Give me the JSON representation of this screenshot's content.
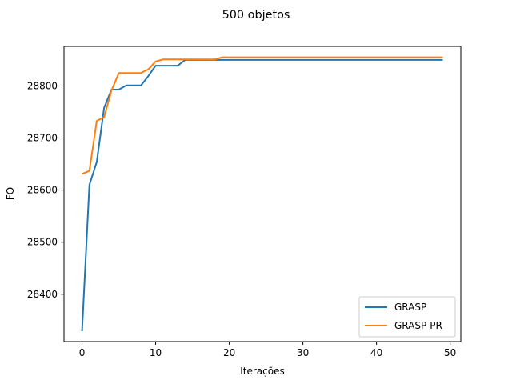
{
  "chart_data": {
    "type": "line",
    "title": "500 objetos",
    "xlabel": "Iterações",
    "ylabel": "FO",
    "xlim": [
      -2.45,
      51.45
    ],
    "ylim": [
      28309,
      28876
    ],
    "xticks": [
      0,
      10,
      20,
      30,
      40,
      50
    ],
    "yticks": [
      28400,
      28500,
      28600,
      28700,
      28800
    ],
    "grid": false,
    "legend_position": "lower right",
    "series": [
      {
        "name": "GRASP",
        "color": "#1f77b4",
        "x": [
          0,
          1,
          2,
          3,
          4,
          5,
          6,
          7,
          8,
          9,
          10,
          11,
          12,
          13,
          14,
          15,
          16,
          17,
          18,
          19,
          20,
          21,
          22,
          23,
          24,
          25,
          26,
          27,
          28,
          29,
          30,
          31,
          32,
          33,
          34,
          35,
          36,
          37,
          38,
          39,
          40,
          41,
          42,
          43,
          44,
          45,
          46,
          47,
          48,
          49
        ],
        "values": [
          28329,
          28610,
          28654,
          28758,
          28793,
          28793,
          28801,
          28801,
          28801,
          28819,
          28839,
          28839,
          28839,
          28839,
          28850,
          28850,
          28850,
          28850,
          28850,
          28850,
          28850,
          28850,
          28850,
          28850,
          28850,
          28850,
          28850,
          28850,
          28850,
          28850,
          28850,
          28850,
          28850,
          28850,
          28850,
          28850,
          28850,
          28850,
          28850,
          28850,
          28850,
          28850,
          28850,
          28850,
          28850,
          28850,
          28850,
          28850,
          28850,
          28850
        ]
      },
      {
        "name": "GRASP-PR",
        "color": "#ff7f0e",
        "x": [
          0,
          1,
          2,
          3,
          4,
          5,
          6,
          7,
          8,
          9,
          10,
          11,
          12,
          13,
          14,
          15,
          16,
          17,
          18,
          19,
          20,
          21,
          22,
          23,
          24,
          25,
          26,
          27,
          28,
          29,
          30,
          31,
          32,
          33,
          34,
          35,
          36,
          37,
          38,
          39,
          40,
          41,
          42,
          43,
          44,
          45,
          46,
          47,
          48,
          49
        ],
        "values": [
          28631,
          28637,
          28733,
          28740,
          28791,
          28825,
          28825,
          28825,
          28825,
          28832,
          28847,
          28851,
          28851,
          28851,
          28851,
          28851,
          28851,
          28851,
          28851,
          28855,
          28855,
          28855,
          28855,
          28855,
          28855,
          28855,
          28855,
          28855,
          28855,
          28855,
          28855,
          28855,
          28855,
          28855,
          28855,
          28855,
          28855,
          28855,
          28855,
          28855,
          28855,
          28855,
          28855,
          28855,
          28855,
          28855,
          28855,
          28855,
          28855,
          28855
        ]
      }
    ]
  }
}
